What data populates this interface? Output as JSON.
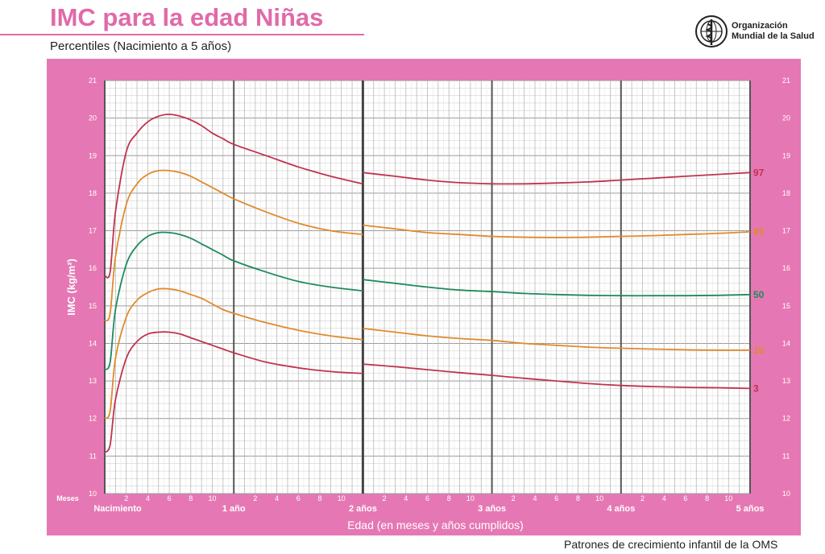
{
  "header": {
    "title": "IMC para la edad Niñas",
    "subtitle": "Percentiles (Nacimiento a 5 años)",
    "org_line1": "Organización",
    "org_line2": "Mundial de la Salud",
    "logo_icon": "who-emblem-icon"
  },
  "footer": {
    "text": "Patrones de crecimiento infantil de la OMS"
  },
  "colors": {
    "panel": "#e578b4",
    "title": "#e06aa8",
    "p97": "#c0334d",
    "p85": "#e08a2c",
    "p50": "#1f8a5b",
    "p15": "#e08a2c",
    "p3": "#c0334d"
  },
  "chart_data": {
    "type": "line",
    "xlabel": "Edad (en meses y años cumplidos)",
    "ylabel": "IMC (kg/m²)",
    "x_unit": "months",
    "xlim": [
      0,
      60
    ],
    "ylim": [
      10,
      21
    ],
    "y_ticks": [
      "10",
      "11",
      "12",
      "13",
      "14",
      "15",
      "16",
      "17",
      "18",
      "19",
      "20",
      "21"
    ],
    "months_label": "Meses",
    "month_ticks": [
      "2",
      "4",
      "6",
      "8",
      "10"
    ],
    "year_labels": [
      "Nacimiento",
      "1 año",
      "2 años",
      "3 años",
      "4 años",
      "5 años"
    ],
    "grid": true,
    "break_at_month": 24,
    "x": [
      0,
      0.5,
      1,
      2,
      3,
      4,
      5,
      6,
      7,
      8,
      9,
      10,
      11,
      12,
      15,
      18,
      21,
      24,
      24,
      27,
      30,
      33,
      36,
      39,
      42,
      45,
      48,
      51,
      54,
      57,
      60
    ],
    "series": [
      {
        "name": "97",
        "color": "#c0334d",
        "values": [
          15.8,
          15.9,
          17.5,
          19.1,
          19.6,
          19.9,
          20.05,
          20.1,
          20.05,
          19.95,
          19.8,
          19.6,
          19.45,
          19.3,
          19.0,
          18.7,
          18.45,
          18.25,
          18.55,
          18.45,
          18.35,
          18.28,
          18.25,
          18.25,
          18.27,
          18.3,
          18.35,
          18.4,
          18.45,
          18.5,
          18.55
        ]
      },
      {
        "name": "85",
        "color": "#e08a2c",
        "values": [
          14.6,
          14.8,
          16.3,
          17.7,
          18.25,
          18.5,
          18.6,
          18.6,
          18.55,
          18.45,
          18.3,
          18.15,
          18.0,
          17.85,
          17.5,
          17.2,
          17.0,
          16.9,
          17.15,
          17.05,
          16.95,
          16.9,
          16.85,
          16.83,
          16.82,
          16.83,
          16.85,
          16.87,
          16.9,
          16.93,
          16.97
        ]
      },
      {
        "name": "50",
        "color": "#1f8a5b",
        "values": [
          13.3,
          13.5,
          14.9,
          16.1,
          16.6,
          16.85,
          16.95,
          16.95,
          16.9,
          16.8,
          16.65,
          16.5,
          16.35,
          16.2,
          15.9,
          15.65,
          15.5,
          15.4,
          15.7,
          15.6,
          15.5,
          15.42,
          15.38,
          15.33,
          15.3,
          15.28,
          15.27,
          15.27,
          15.27,
          15.28,
          15.3
        ]
      },
      {
        "name": "15",
        "color": "#e08a2c",
        "values": [
          12.0,
          12.2,
          13.6,
          14.7,
          15.15,
          15.35,
          15.45,
          15.45,
          15.4,
          15.3,
          15.2,
          15.05,
          14.9,
          14.8,
          14.55,
          14.35,
          14.2,
          14.1,
          14.4,
          14.3,
          14.2,
          14.13,
          14.08,
          14.0,
          13.95,
          13.9,
          13.87,
          13.85,
          13.83,
          13.82,
          13.82
        ]
      },
      {
        "name": "3",
        "color": "#c0334d",
        "values": [
          11.1,
          11.3,
          12.5,
          13.6,
          14.05,
          14.25,
          14.3,
          14.3,
          14.25,
          14.15,
          14.05,
          13.95,
          13.85,
          13.75,
          13.5,
          13.35,
          13.25,
          13.2,
          13.45,
          13.38,
          13.3,
          13.22,
          13.15,
          13.07,
          13.0,
          12.93,
          12.88,
          12.85,
          12.83,
          12.82,
          12.8
        ]
      }
    ]
  }
}
